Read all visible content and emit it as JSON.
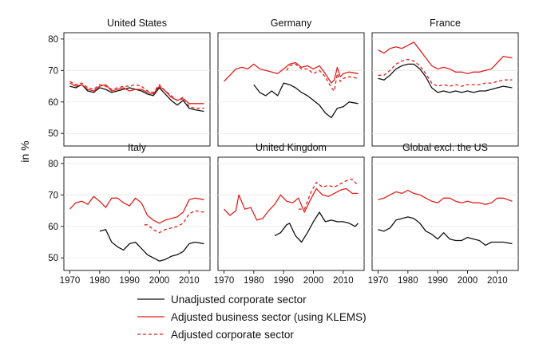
{
  "y_axis_label": "in %",
  "legend": [
    {
      "label": "Unadjusted corporate sector",
      "style": "solid",
      "color": "#111111"
    },
    {
      "label": "Adjusted business sector (using KLEMS)",
      "style": "solid",
      "color": "#e0201b"
    },
    {
      "label": "Adjusted corporate sector",
      "style": "dashed",
      "color": "#e0201b"
    }
  ],
  "chart_data": {
    "type": "line",
    "layout": "small-multiples 2x3",
    "xlim": [
      1968,
      2017
    ],
    "ylim": [
      46,
      82
    ],
    "x_ticks": [
      1970,
      1980,
      1990,
      2000,
      2010
    ],
    "y_ticks": [
      50,
      60,
      70,
      80
    ],
    "grid": "horizontal",
    "legend_position": "bottom",
    "panels": [
      {
        "title": "United States",
        "series": [
          {
            "name": "Unadjusted corporate sector",
            "x": [
              1970,
              1972,
              1974,
              1976,
              1978,
              1980,
              1982,
              1984,
              1986,
              1988,
              1990,
              1992,
              1994,
              1996,
              1998,
              2000,
              2002,
              2004,
              2006,
              2008,
              2010,
              2012,
              2015
            ],
            "y": [
              65,
              64.5,
              65.5,
              63.5,
              63,
              64.5,
              64,
              63,
              63.5,
              64,
              64.5,
              64,
              63.5,
              62.5,
              62,
              64.5,
              62.5,
              60.5,
              59,
              60.5,
              58,
              57.5,
              57
            ]
          },
          {
            "name": "Adjusted business sector (using KLEMS)",
            "x": [
              1970,
              1972,
              1974,
              1976,
              1978,
              1980,
              1982,
              1984,
              1986,
              1988,
              1990,
              1992,
              1994,
              1996,
              1998,
              2000,
              2002,
              2004,
              2006,
              2008,
              2010,
              2012,
              2015
            ],
            "y": [
              66,
              65,
              65.5,
              64,
              63.5,
              65,
              65.5,
              63.5,
              64,
              64.5,
              63.5,
              64,
              64,
              63,
              62.5,
              65,
              63.5,
              61.5,
              60.5,
              61,
              59.5,
              59.5,
              59.5
            ]
          },
          {
            "name": "Adjusted corporate sector",
            "x": [
              1970,
              1972,
              1974,
              1976,
              1978,
              1980,
              1982,
              1984,
              1986,
              1988,
              1990,
              1992,
              1994,
              1996,
              1998,
              2000,
              2002,
              2004,
              2006,
              2008,
              2010,
              2012,
              2015
            ],
            "y": [
              66.5,
              65.5,
              66,
              64.5,
              64,
              65.5,
              65,
              64,
              64.5,
              65,
              65,
              65.5,
              65,
              63.5,
              63,
              65.5,
              63.5,
              62,
              60.5,
              61.5,
              58.5,
              58,
              58
            ]
          }
        ]
      },
      {
        "title": "Germany",
        "series": [
          {
            "name": "Unadjusted corporate sector",
            "x": [
              1980,
              1982,
              1984,
              1986,
              1988,
              1990,
              1992,
              1994,
              1996,
              1998,
              2000,
              2002,
              2004,
              2006,
              2007,
              2008,
              2010,
              2012,
              2015
            ],
            "y": [
              65.5,
              63,
              62,
              63.5,
              62,
              66,
              65.5,
              64.5,
              63,
              62,
              60.5,
              59,
              56.5,
              55,
              56.5,
              58,
              58.5,
              60,
              59.5
            ]
          },
          {
            "name": "Adjusted business sector (using KLEMS)",
            "x": [
              1970,
              1972,
              1974,
              1976,
              1978,
              1980,
              1982,
              1984,
              1986,
              1988,
              1990,
              1992,
              1994,
              1996,
              1998,
              2000,
              2002,
              2004,
              2006,
              2007,
              2008,
              2009,
              2010,
              2012,
              2015
            ],
            "y": [
              66.5,
              68.5,
              70.5,
              71,
              70.5,
              72,
              70.5,
              70,
              69.5,
              69,
              70.5,
              72,
              72.5,
              71,
              71.5,
              70.5,
              71.5,
              69,
              66,
              67,
              71,
              68,
              69,
              69.5,
              69
            ]
          },
          {
            "name": "Adjusted corporate sector",
            "x": [
              1991,
              1992,
              1994,
              1996,
              1998,
              2000,
              2002,
              2004,
              2006,
              2007,
              2008,
              2009,
              2010,
              2012,
              2015
            ],
            "y": [
              70,
              71.5,
              72,
              70.5,
              70.5,
              69,
              70,
              68,
              64.5,
              63.5,
              69,
              66.5,
              67.5,
              68,
              67.5
            ]
          }
        ]
      },
      {
        "title": "France",
        "series": [
          {
            "name": "Unadjusted corporate sector",
            "x": [
              1970,
              1972,
              1974,
              1976,
              1978,
              1980,
              1982,
              1984,
              1986,
              1988,
              1990,
              1992,
              1994,
              1996,
              1998,
              2000,
              2002,
              2004,
              2006,
              2008,
              2010,
              2012,
              2015
            ],
            "y": [
              67.5,
              67,
              68.5,
              70.5,
              71.5,
              72,
              72,
              70.5,
              68,
              64.5,
              63,
              63.5,
              63,
              63.5,
              63,
              63.5,
              63,
              63.5,
              63.5,
              64,
              64.5,
              65,
              64.5
            ]
          },
          {
            "name": "Adjusted business sector (using KLEMS)",
            "x": [
              1970,
              1972,
              1974,
              1976,
              1978,
              1980,
              1982,
              1984,
              1986,
              1988,
              1990,
              1992,
              1994,
              1996,
              1998,
              2000,
              2002,
              2004,
              2006,
              2008,
              2010,
              2012,
              2015
            ],
            "y": [
              76.5,
              75.5,
              77,
              77.5,
              77,
              78,
              79,
              76.5,
              74,
              71.5,
              70.5,
              71,
              70.5,
              69.5,
              69.5,
              69,
              69.5,
              69.5,
              70,
              70.5,
              72.5,
              74.5,
              74
            ]
          },
          {
            "name": "Adjusted corporate sector",
            "x": [
              1970,
              1972,
              1974,
              1976,
              1978,
              1980,
              1982,
              1984,
              1986,
              1988,
              1990,
              1992,
              1994,
              1996,
              1998,
              2000,
              2002,
              2004,
              2006,
              2008,
              2010,
              2012,
              2015
            ],
            "y": [
              68.5,
              68.5,
              70,
              72,
              73,
              73.5,
              73,
              71.5,
              69,
              66,
              65,
              65.5,
              65,
              65.5,
              65,
              65.5,
              65.5,
              65.5,
              66,
              66,
              66.5,
              67,
              67
            ]
          }
        ]
      },
      {
        "title": "Italy",
        "series": [
          {
            "name": "Unadjusted corporate sector",
            "x": [
              1980,
              1982,
              1984,
              1986,
              1988,
              1990,
              1992,
              1994,
              1996,
              1998,
              2000,
              2002,
              2004,
              2006,
              2008,
              2010,
              2012,
              2015
            ],
            "y": [
              58.5,
              59,
              55,
              53.5,
              52.5,
              54.5,
              55,
              53,
              51,
              50,
              49,
              49.5,
              50.5,
              51,
              52,
              54.5,
              55,
              54.5
            ]
          },
          {
            "name": "Adjusted business sector (using KLEMS)",
            "x": [
              1970,
              1972,
              1974,
              1976,
              1978,
              1980,
              1982,
              1984,
              1986,
              1988,
              1990,
              1992,
              1994,
              1996,
              1998,
              2000,
              2002,
              2004,
              2006,
              2008,
              2010,
              2012,
              2015
            ],
            "y": [
              65.5,
              67.5,
              68,
              67,
              69.5,
              68,
              66,
              69,
              69,
              67.5,
              66.5,
              69,
              67.5,
              63.5,
              62,
              61,
              62,
              62.5,
              63,
              64.5,
              68.5,
              69,
              68.5
            ]
          },
          {
            "name": "Adjusted corporate sector",
            "x": [
              1995,
              1996,
              1998,
              2000,
              2002,
              2004,
              2006,
              2008,
              2010,
              2012,
              2015
            ],
            "y": [
              60.5,
              60.5,
              59,
              58,
              59,
              59.5,
              60,
              61,
              64,
              65,
              64.5
            ]
          }
        ]
      },
      {
        "title": "United Kingdom",
        "series": [
          {
            "name": "Unadjusted corporate sector",
            "x": [
              1987,
              1989,
              1991,
              1992,
              1994,
              1996,
              1998,
              2000,
              2002,
              2004,
              2006,
              2008,
              2010,
              2012,
              2014,
              2015
            ],
            "y": [
              57,
              58,
              60.5,
              61,
              57,
              55,
              58,
              61.5,
              64.5,
              61.5,
              62,
              61.5,
              61.5,
              61,
              60,
              61
            ]
          },
          {
            "name": "Adjusted business sector (using KLEMS)",
            "x": [
              1970,
              1972,
              1974,
              1975,
              1977,
              1979,
              1981,
              1983,
              1985,
              1987,
              1989,
              1991,
              1993,
              1995,
              1997,
              1999,
              2001,
              2003,
              2005,
              2007,
              2009,
              2011,
              2013,
              2015
            ],
            "y": [
              65.5,
              63.5,
              65,
              70,
              65.5,
              66,
              62,
              62.5,
              65,
              67,
              70,
              68,
              67.5,
              69,
              64.5,
              68.5,
              72,
              70,
              69.5,
              70.5,
              71.5,
              72,
              70.5,
              70.5
            ]
          },
          {
            "name": "Adjusted corporate sector",
            "x": [
              1995,
              1997,
              1999,
              2001,
              2003,
              2005,
              2007,
              2009,
              2011,
              2013,
              2015
            ],
            "y": [
              65.5,
              65.5,
              70.5,
              74,
              72.5,
              73,
              72.5,
              73.5,
              74.5,
              75,
              73
            ]
          }
        ]
      },
      {
        "title": "Global excl. the US",
        "series": [
          {
            "name": "Unadjusted corporate sector",
            "x": [
              1970,
              1972,
              1974,
              1976,
              1978,
              1980,
              1982,
              1984,
              1986,
              1988,
              1990,
              1992,
              1994,
              1996,
              1998,
              2000,
              2002,
              2004,
              2006,
              2008,
              2010,
              2012,
              2015
            ],
            "y": [
              59,
              58.5,
              59.5,
              62,
              62.5,
              63,
              62.5,
              61,
              58.5,
              57.5,
              56,
              58,
              56,
              55.5,
              55.5,
              56.5,
              56,
              55.5,
              54,
              55,
              55,
              55,
              54.5
            ]
          },
          {
            "name": "Adjusted business sector (using KLEMS)",
            "x": [
              1970,
              1972,
              1974,
              1976,
              1978,
              1980,
              1982,
              1984,
              1986,
              1988,
              1990,
              1992,
              1994,
              1996,
              1998,
              2000,
              2002,
              2004,
              2006,
              2008,
              2010,
              2012,
              2015
            ],
            "y": [
              68.5,
              69,
              70,
              71,
              70.5,
              71.5,
              70.5,
              70,
              69,
              68,
              67.5,
              69,
              69,
              68,
              67.5,
              68,
              67.5,
              67.5,
              67,
              67.5,
              69,
              69,
              68
            ]
          }
        ]
      }
    ]
  }
}
